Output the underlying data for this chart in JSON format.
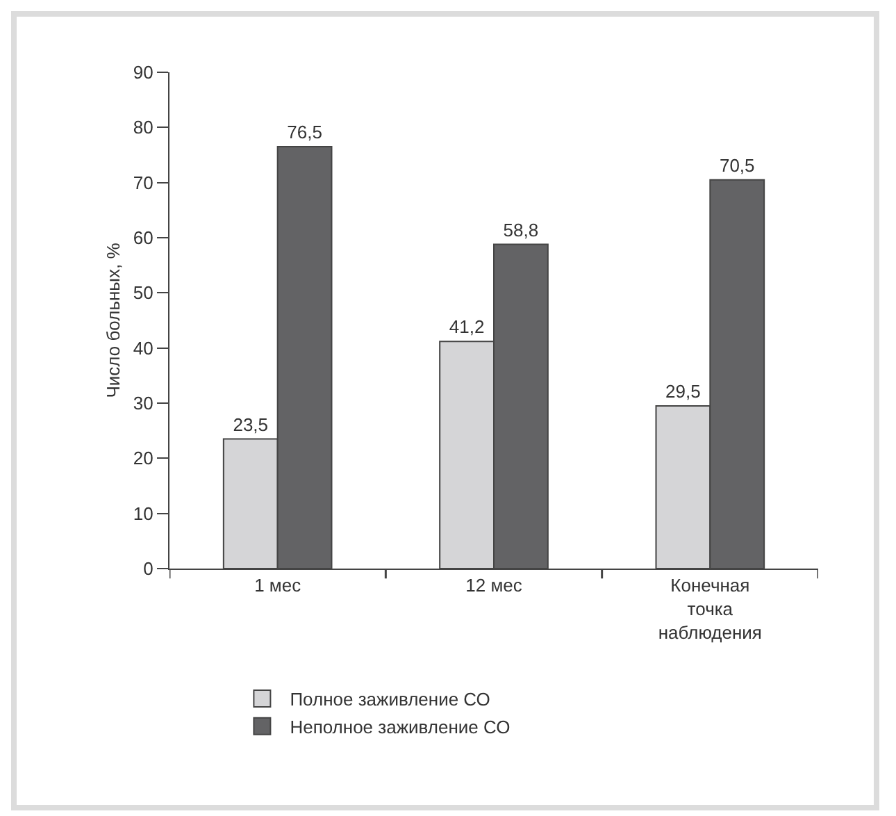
{
  "chart_data": {
    "type": "bar",
    "ylabel": "Число больных, %",
    "categories": [
      "1 мес",
      "12 мес",
      "Конечная точка наблюдения"
    ],
    "series": [
      {
        "name": "Полное заживление СО",
        "color": "#d5d5d7",
        "values": [
          23.5,
          41.2,
          29.5
        ],
        "value_labels": [
          "23,5",
          "41,2",
          "29,5"
        ]
      },
      {
        "name": "Неполное заживление СО",
        "color": "#636365",
        "values": [
          76.5,
          58.8,
          70.5
        ],
        "value_labels": [
          "76,5",
          "58,8",
          "70,5"
        ]
      }
    ],
    "ylim": [
      0,
      90
    ],
    "yticks": [
      0,
      10,
      20,
      30,
      40,
      50,
      60,
      70,
      80,
      90
    ],
    "grid": false,
    "legend": "bottom"
  }
}
